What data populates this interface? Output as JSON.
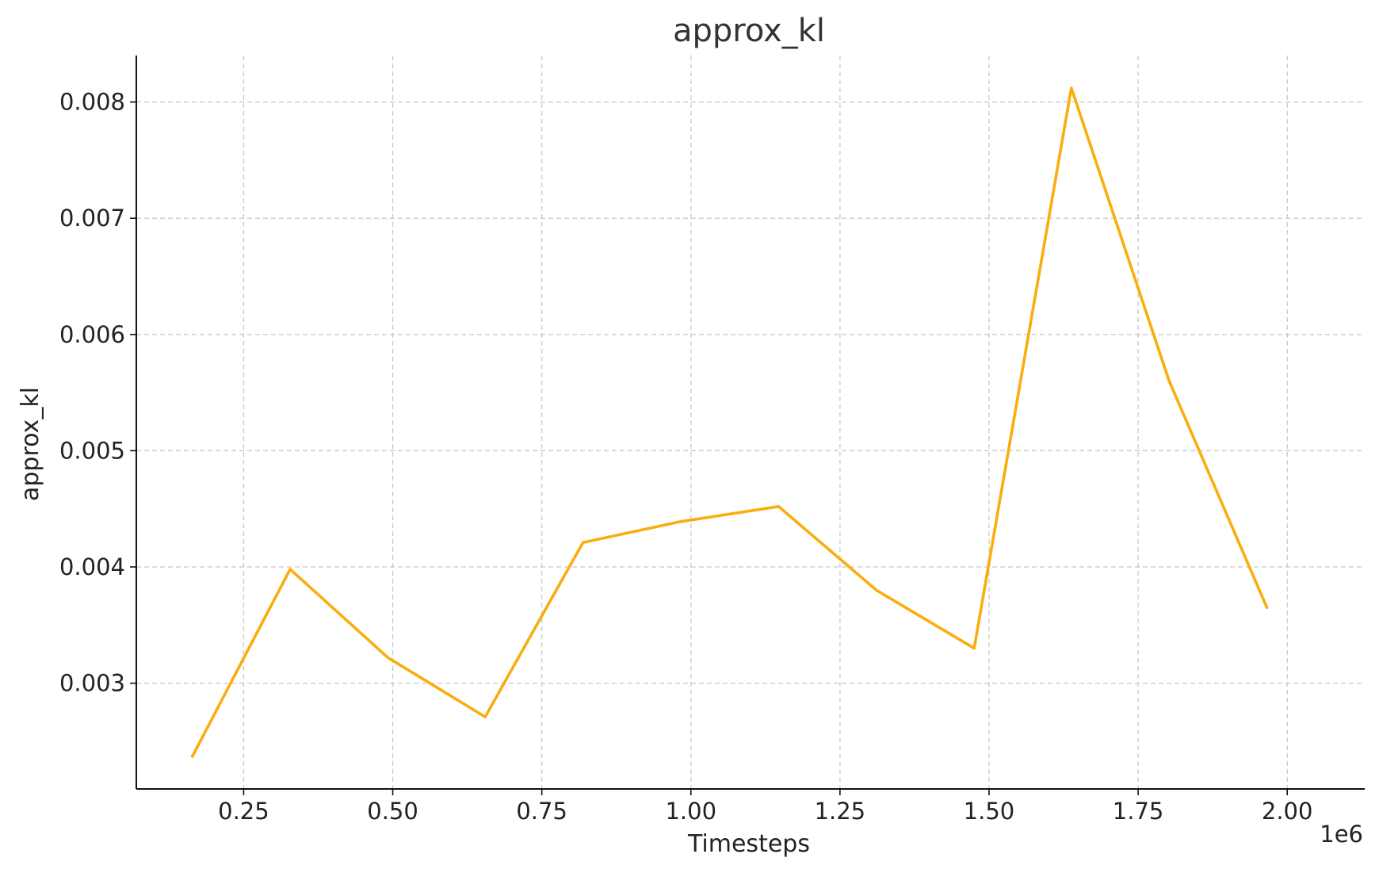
{
  "chart_data": {
    "type": "line",
    "title": "approx_kl",
    "xlabel": "Timesteps",
    "ylabel": "approx_kl",
    "x_offset_label": "1e6",
    "x_scale": 1000000,
    "xlim": [
      0.07,
      2.13
    ],
    "ylim": [
      0.00209,
      0.0084
    ],
    "x_ticks": [
      {
        "value": 0.25,
        "label": "0.25"
      },
      {
        "value": 0.5,
        "label": "0.50"
      },
      {
        "value": 0.75,
        "label": "0.75"
      },
      {
        "value": 1.0,
        "label": "1.00"
      },
      {
        "value": 1.25,
        "label": "1.25"
      },
      {
        "value": 1.5,
        "label": "1.50"
      },
      {
        "value": 1.75,
        "label": "1.75"
      },
      {
        "value": 2.0,
        "label": "2.00"
      }
    ],
    "y_ticks": [
      {
        "value": 0.003,
        "label": "0.003"
      },
      {
        "value": 0.004,
        "label": "0.004"
      },
      {
        "value": 0.005,
        "label": "0.005"
      },
      {
        "value": 0.006,
        "label": "0.006"
      },
      {
        "value": 0.007,
        "label": "0.007"
      },
      {
        "value": 0.008,
        "label": "0.008"
      }
    ],
    "grid": true,
    "series": [
      {
        "color": "#F9AE0E",
        "x": [
          0.164,
          0.328,
          0.492,
          0.655,
          0.819,
          0.983,
          1.147,
          1.311,
          1.475,
          1.638,
          1.802,
          1.966
        ],
        "y": [
          0.00237,
          0.00398,
          0.00322,
          0.00271,
          0.00421,
          0.00439,
          0.00452,
          0.0038,
          0.0033,
          0.00812,
          0.0056,
          0.00365
        ]
      }
    ]
  }
}
